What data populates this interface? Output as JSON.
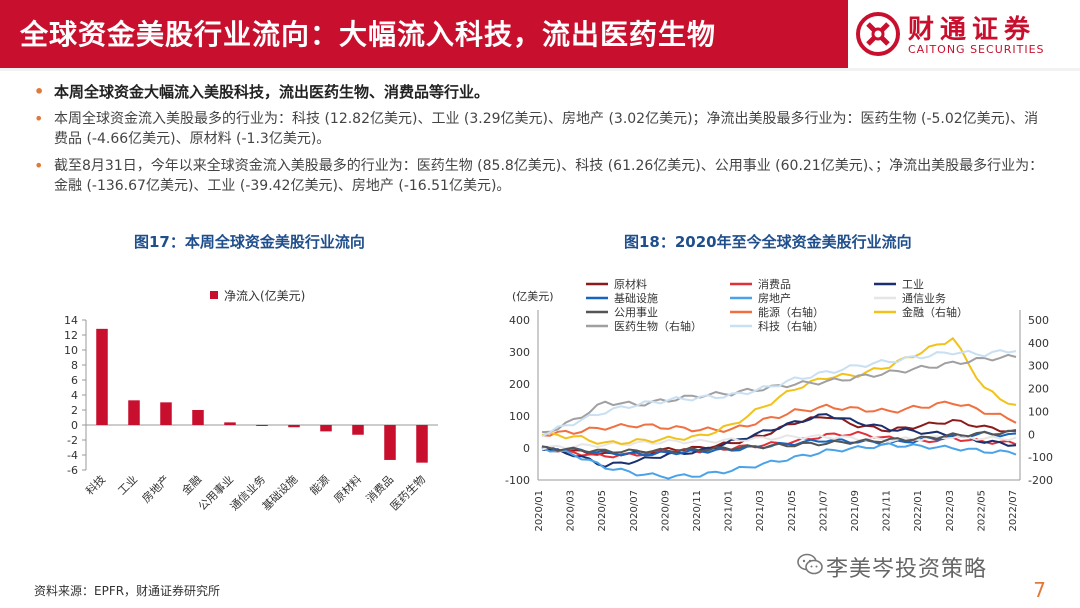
{
  "header": {
    "title": "全球资金美股行业流向：大幅流入科技，流出医药生物",
    "logo_cn": "财通证券",
    "logo_en": "CAITONG SECURITIES"
  },
  "bullets": [
    "本周全球资金大幅流入美股科技，流出医药生物、消费品等行业。",
    "本周全球资金流入美股最多的行业为：科技 (12.82亿美元)、工业 (3.29亿美元)、房地产 (3.02亿美元)；净流出美股最多行业为：医药生物 (-5.02亿美元)、消费品 (-4.66亿美元)、原材料 (-1.3亿美元)。",
    "截至8月31日，今年以来全球资金流入美股最多的行业为：医药生物 (85.8亿美元)、科技 (61.26亿美元)、公用事业 (60.21亿美元)、；净流出美股最多行业为：金融 (-136.67亿美元)、工业 (-39.42亿美元)、房地产 (-16.51亿美元)。"
  ],
  "fig17_title": "图17：本周全球资金美股行业流向",
  "fig18_title": "图18：2020年至今全球资金美股行业流向",
  "footer": {
    "source": "资料来源：EPFR，财通证券研究所",
    "watermark": "李美岑投资策略",
    "page": "7"
  },
  "colors": {
    "brand_red": "#c8102e",
    "accent_orange": "#e07a3a",
    "title_blue": "#1f4e8c"
  },
  "chart_data": [
    {
      "type": "bar",
      "title": "图17：本周全球资金美股行业流向",
      "legend": "净流入(亿美元)",
      "categories": [
        "科技",
        "工业",
        "房地产",
        "金融",
        "公用事业",
        "通信业务",
        "基础设施",
        "能源",
        "原材料",
        "消费品",
        "医药生物"
      ],
      "values": [
        12.82,
        3.29,
        3.02,
        2.0,
        0.35,
        -0.1,
        -0.3,
        -0.85,
        -1.3,
        -4.66,
        -5.02
      ],
      "ylim": [
        -6,
        14
      ],
      "yticks": [
        "-6",
        "-4",
        "-2",
        "0",
        "2",
        "4",
        "6",
        "8",
        "10",
        "12",
        "14"
      ],
      "color": "#c8102e"
    },
    {
      "type": "line",
      "title": "图18：2020年至今全球资金美股行业流向",
      "ylabel_left": "(亿美元)",
      "ylim_left": [
        -100,
        400
      ],
      "yticks_left": [
        "-100",
        "0",
        "100",
        "200",
        "300",
        "400"
      ],
      "ylim_right": [
        -200,
        500
      ],
      "yticks_right": [
        "-200",
        "-100",
        "0",
        "100",
        "200",
        "300",
        "400",
        "500"
      ],
      "xticks": [
        "2020/01",
        "2020/03",
        "2020/05",
        "2020/07",
        "2020/09",
        "2020/11",
        "2021/01",
        "2021/03",
        "2021/05",
        "2021/07",
        "2021/09",
        "2021/11",
        "2022/01",
        "2022/03",
        "2022/05",
        "2022/07"
      ],
      "series": [
        {
          "name": "原材料",
          "color": "#8b1a1a",
          "axis": "left",
          "values": [
            0,
            -10,
            -20,
            -15,
            -5,
            0,
            15,
            40,
            80,
            100,
            70,
            55,
            70,
            85,
            65,
            50
          ]
        },
        {
          "name": "消费品",
          "color": "#e0303a",
          "axis": "left",
          "values": [
            0,
            -15,
            -25,
            -20,
            -10,
            -8,
            0,
            10,
            20,
            40,
            45,
            30,
            20,
            30,
            20,
            15
          ]
        },
        {
          "name": "工业",
          "color": "#1a2f6e",
          "axis": "left",
          "values": [
            0,
            -20,
            -55,
            -40,
            -20,
            -10,
            20,
            50,
            80,
            105,
            80,
            60,
            50,
            40,
            20,
            10
          ]
        },
        {
          "name": "基础设施",
          "color": "#1565c0",
          "axis": "left",
          "values": [
            0,
            -5,
            -15,
            -20,
            -15,
            -10,
            -5,
            5,
            15,
            25,
            20,
            15,
            25,
            35,
            45,
            40
          ]
        },
        {
          "name": "房地产",
          "color": "#4aa3e8",
          "axis": "left",
          "values": [
            0,
            -20,
            -60,
            -80,
            -90,
            -85,
            -70,
            -50,
            -30,
            -10,
            0,
            10,
            5,
            0,
            -10,
            -15
          ]
        },
        {
          "name": "通信业务",
          "color": "#e6e6e6",
          "axis": "left",
          "values": [
            0,
            5,
            10,
            15,
            20,
            20,
            25,
            30,
            35,
            35,
            30,
            25,
            30,
            35,
            30,
            30
          ]
        },
        {
          "name": "公用事业",
          "color": "#555555",
          "axis": "left",
          "values": [
            0,
            -5,
            -10,
            -10,
            -8,
            -5,
            0,
            5,
            10,
            15,
            20,
            25,
            30,
            40,
            45,
            50
          ]
        },
        {
          "name": "能源（右轴）",
          "color": "#f07040",
          "axis": "right",
          "values": [
            0,
            10,
            30,
            40,
            30,
            20,
            20,
            60,
            100,
            120,
            110,
            100,
            120,
            140,
            100,
            60
          ]
        },
        {
          "name": "金融（右轴）",
          "color": "#f2c21a",
          "axis": "right",
          "values": [
            0,
            -10,
            -40,
            -30,
            -20,
            -10,
            40,
            120,
            200,
            250,
            260,
            300,
            360,
            420,
            200,
            120
          ]
        },
        {
          "name": "医药生物（右轴）",
          "color": "#a0a0a0",
          "axis": "right",
          "values": [
            0,
            60,
            140,
            130,
            150,
            170,
            180,
            200,
            220,
            230,
            250,
            270,
            290,
            310,
            330,
            340
          ]
        },
        {
          "name": "科技（右轴）",
          "color": "#c9dff2",
          "axis": "right",
          "values": [
            0,
            50,
            100,
            130,
            150,
            160,
            170,
            200,
            240,
            270,
            300,
            320,
            340,
            360,
            350,
            370
          ]
        }
      ]
    }
  ]
}
